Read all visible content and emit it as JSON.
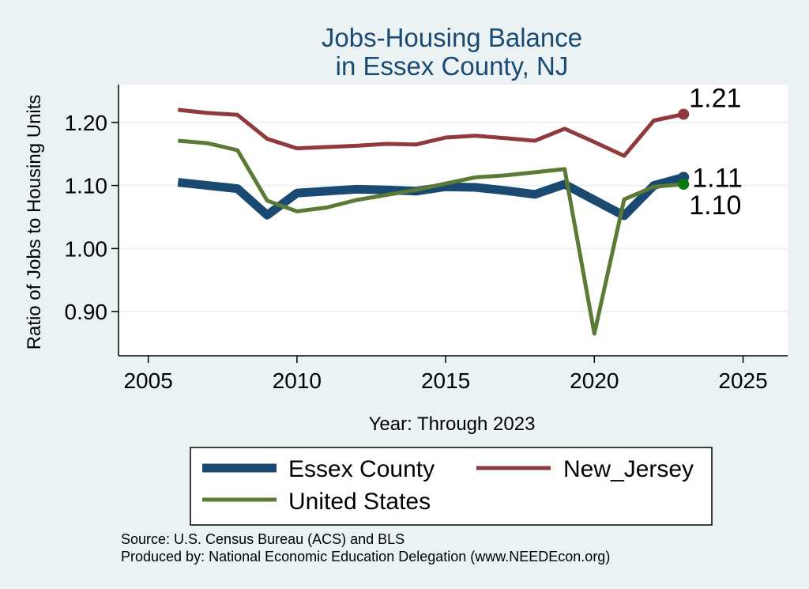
{
  "chart_data": {
    "type": "line",
    "title": [
      "Jobs-Housing Balance",
      "in Essex County, NJ"
    ],
    "xlabel": "Year: Through 2023",
    "ylabel": "Ratio of Jobs to Housing Units",
    "xlim": [
      2004,
      2026.5
    ],
    "ylim": [
      0.83,
      1.26
    ],
    "xticks": [
      2005,
      2010,
      2015,
      2020,
      2025
    ],
    "yticks": [
      0.9,
      1.0,
      1.1,
      1.2
    ],
    "ytick_labels": [
      "0.90",
      "1.00",
      "1.10",
      "1.20"
    ],
    "grid": "horizontal",
    "legend_placement": "bottom",
    "x": [
      2006,
      2007,
      2008,
      2009,
      2010,
      2011,
      2012,
      2013,
      2014,
      2015,
      2016,
      2017,
      2018,
      2019,
      2020,
      2021,
      2022,
      2023
    ],
    "series": [
      {
        "name": "Essex County",
        "color": "#1a4a72",
        "values": [
          1.105,
          1.1,
          1.095,
          1.053,
          1.088,
          1.091,
          1.094,
          1.093,
          1.091,
          1.098,
          1.097,
          1.092,
          1.086,
          1.102,
          1.077,
          1.052,
          1.1,
          1.113
        ],
        "end_label": "1.11",
        "end_dot_color": "#1a4a72"
      },
      {
        "name": "New_Jersey",
        "color": "#903a3e",
        "values": [
          1.22,
          1.215,
          1.212,
          1.174,
          1.159,
          1.161,
          1.163,
          1.166,
          1.165,
          1.176,
          1.179,
          1.175,
          1.171,
          1.19,
          1.169,
          1.147,
          1.203,
          1.213
        ],
        "end_label": "1.21",
        "end_dot_color": "#903a3e"
      },
      {
        "name": "United States",
        "color": "#5a7a35",
        "values": [
          1.171,
          1.167,
          1.156,
          1.076,
          1.059,
          1.065,
          1.077,
          1.085,
          1.093,
          1.103,
          1.113,
          1.116,
          1.121,
          1.126,
          0.865,
          1.078,
          1.098,
          1.102
        ],
        "end_label": "1.10",
        "end_dot_color": "#0b7a0b"
      }
    ],
    "source_note": "Source: U.S. Census Bureau (ACS) and BLS",
    "producer_note": "Produced by: National Economic Education Delegation (www.NEEDEcon.org)"
  },
  "colors": {
    "page_background": "#eaf2f3",
    "plot_background": "#ffffff",
    "grid": "#eaf2f3",
    "title": "#1a4a72"
  }
}
